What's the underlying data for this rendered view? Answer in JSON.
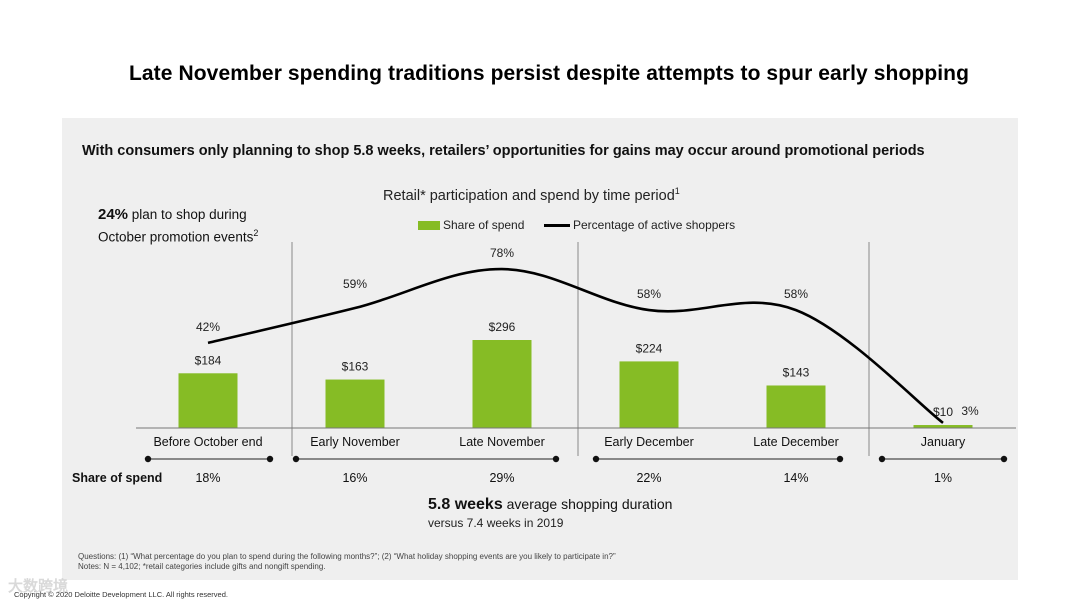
{
  "title": "Late November spending traditions persist despite attempts to spur early shopping",
  "subtitle": "With consumers only planning to shop 5.8 weeks, retailers’ opportunities for gains may occur around promotional periods",
  "callout": {
    "bold": "24%",
    "text1": " plan to shop during",
    "text2": "October promotion events",
    "sup": "2"
  },
  "chart_data": {
    "type": "bar+line",
    "title": "Retail* participation and spend by time period",
    "title_sup": "1",
    "categories": [
      "Before October end",
      "Early November",
      "Late November",
      "Early December",
      "Late December",
      "January"
    ],
    "series": [
      {
        "name": "Share of spend",
        "type": "bar",
        "values": [
          184,
          163,
          296,
          224,
          143,
          10
        ],
        "labels": [
          "$184",
          "$163",
          "$296",
          "$224",
          "$143",
          "$10"
        ]
      },
      {
        "name": "Percentage of active shoppers",
        "type": "line",
        "values": [
          42,
          59,
          78,
          58,
          58,
          3
        ],
        "labels": [
          "42%",
          "59%",
          "78%",
          "58%",
          "58%",
          "3%"
        ]
      }
    ],
    "share_of_spend_label": "Share of spend",
    "share_of_spend": [
      "18%",
      "16%",
      "29%",
      "22%",
      "14%",
      "1%"
    ],
    "colors": {
      "bar": "#86bc25",
      "line": "#000000"
    }
  },
  "duration": {
    "bold": "5.8 weeks",
    "text": " average shopping duration",
    "sub": "versus 7.4 weeks in 2019"
  },
  "notes": {
    "questions": "Questions: (1) “What percentage do you plan to spend during the following months?”; (2) “What holiday shopping events are you likely to participate in?”",
    "notes": "Notes: N = 4,102; *retail categories include gifts and nongift spending."
  },
  "copyright": "Copyright © 2020 Deloitte Development LLC. All rights reserved.",
  "watermark": "大数跨境"
}
